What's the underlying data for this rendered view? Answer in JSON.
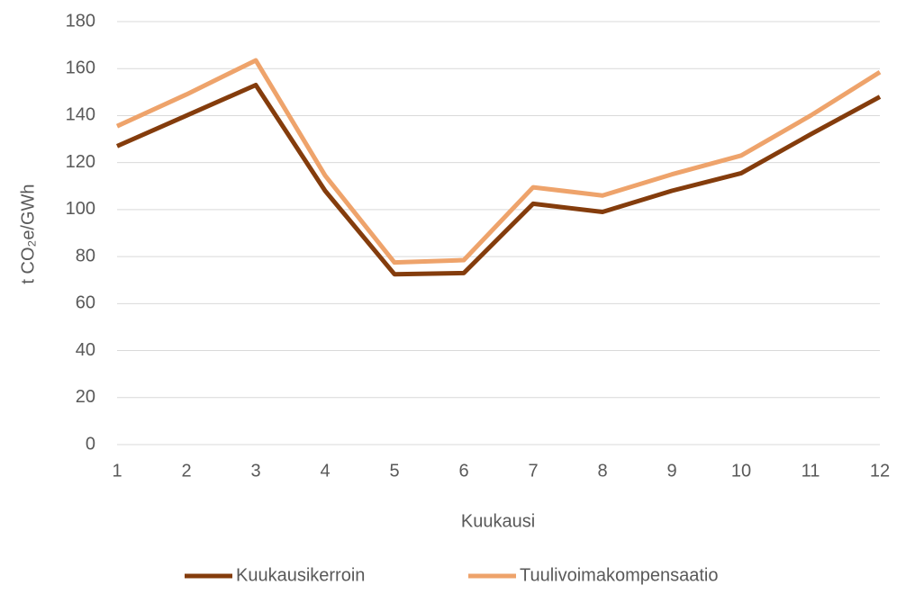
{
  "chart_data": {
    "type": "line",
    "x": [
      1,
      2,
      3,
      4,
      5,
      6,
      7,
      8,
      9,
      10,
      11,
      12
    ],
    "series": [
      {
        "name": "Kuukausikerroin",
        "color": "#843c0c",
        "values": [
          127,
          140,
          153,
          108,
          72.5,
          73,
          102.5,
          99,
          108,
          115.5,
          132,
          148
        ]
      },
      {
        "name": "Tuulivoimakompensaatio",
        "color": "#eea36b",
        "values": [
          135.5,
          149,
          163.5,
          114.5,
          77.5,
          78.5,
          109.5,
          106,
          115,
          123,
          140,
          158.5
        ]
      }
    ],
    "xlabel": "Kuukausi",
    "ylabel": "t CO₂e/GWh",
    "xlim": [
      1,
      12
    ],
    "xticks": [
      1,
      2,
      3,
      4,
      5,
      6,
      7,
      8,
      9,
      10,
      11,
      12
    ],
    "ylim": [
      0,
      180
    ],
    "yticks": [
      0,
      20,
      40,
      60,
      80,
      100,
      120,
      140,
      160,
      180
    ],
    "grid": true,
    "legend": "bottom"
  }
}
